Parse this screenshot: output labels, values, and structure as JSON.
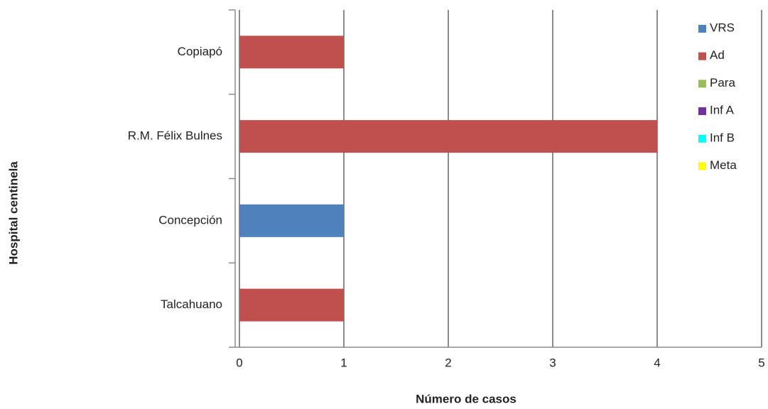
{
  "chart_data": {
    "type": "bar",
    "orientation": "horizontal",
    "stacked": true,
    "categories": [
      "Copiapó",
      "R.M. Félix Bulnes",
      "Concepción",
      "Talcahuano"
    ],
    "series": [
      {
        "name": "VRS",
        "color": "#4f81bd",
        "values": [
          0,
          0,
          1,
          0
        ]
      },
      {
        "name": "Ad",
        "color": "#c0504d",
        "values": [
          1,
          4,
          0,
          1
        ]
      },
      {
        "name": "Para",
        "color": "#9bbb59",
        "values": [
          0,
          0,
          0,
          0
        ]
      },
      {
        "name": "Inf A",
        "color": "#7030a0",
        "values": [
          0,
          0,
          0,
          0
        ]
      },
      {
        "name": "Inf B",
        "color": "#00ffff",
        "values": [
          0,
          0,
          0,
          0
        ]
      },
      {
        "name": "Meta",
        "color": "#ffff00",
        "values": [
          0,
          0,
          0,
          0
        ]
      }
    ],
    "x_label": "Número de casos",
    "y_label": "Hospital centinela",
    "xlim": [
      0,
      5
    ],
    "xticks": [
      0,
      1,
      2,
      3,
      4,
      5
    ],
    "grid": true,
    "legend": "top-right"
  }
}
